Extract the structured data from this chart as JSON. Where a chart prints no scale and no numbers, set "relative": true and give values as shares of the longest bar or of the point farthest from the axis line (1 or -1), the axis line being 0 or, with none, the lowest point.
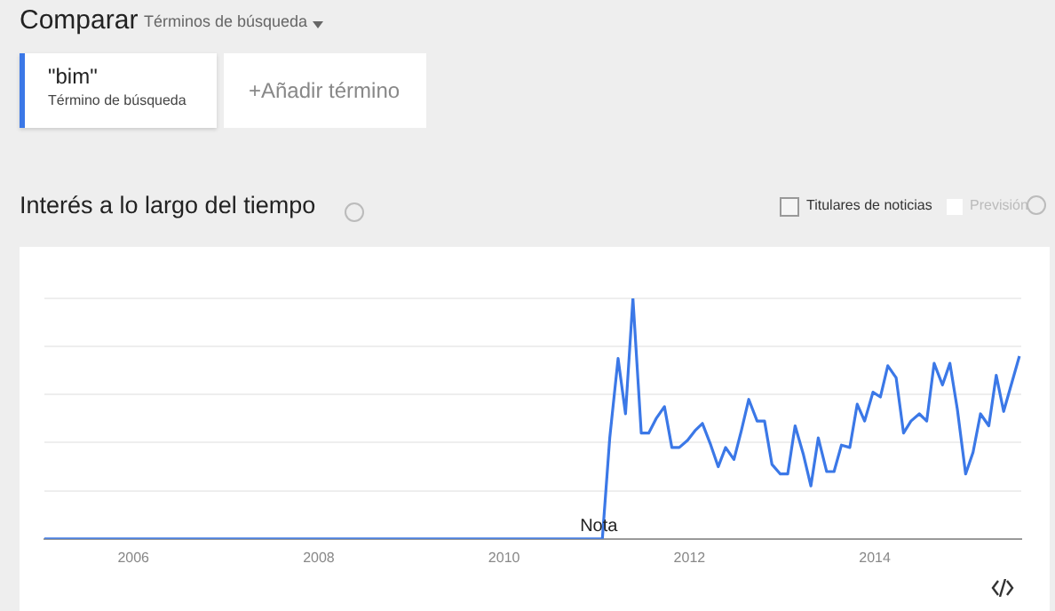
{
  "chart_data": {
    "type": "line",
    "title": "Interés a lo largo del tiempo",
    "relative": true,
    "grid": "y",
    "legend": "top left",
    "marker": "none",
    "line_style": "solid",
    "annotations": [
      "Comparar",
      "Términos de búsqueda",
      "Término de búsqueda",
      "+Añadir término",
      "Titulares de noticias",
      "Previsión",
      {
        "text": "Nota",
        "x": 2011.06,
        "y": 0
      }
    ],
    "xlim": [
      2005.04,
      2015.58
    ],
    "xticks": [
      2006,
      2008,
      2010,
      2012,
      2014
    ],
    "series": [
      {
        "name": "\"bim\"",
        "color": "#3b78e7",
        "x": [
          2005.04,
          2011.06,
          2011.14,
          2011.23,
          2011.31,
          2011.39,
          2011.48,
          2011.56,
          2011.64,
          2011.73,
          2011.81,
          2011.89,
          2011.98,
          2012.06,
          2012.14,
          2012.23,
          2012.31,
          2012.39,
          2012.48,
          2012.56,
          2012.64,
          2012.73,
          2012.81,
          2012.89,
          2012.98,
          2013.06,
          2013.14,
          2013.23,
          2013.31,
          2013.39,
          2013.48,
          2013.56,
          2013.64,
          2013.73,
          2013.81,
          2013.89,
          2013.98,
          2014.06,
          2014.14,
          2014.23,
          2014.31,
          2014.39,
          2014.48,
          2014.56,
          2014.64,
          2014.73,
          2014.81,
          2014.89,
          2014.98,
          2015.06,
          2015.14,
          2015.23,
          2015.31,
          2015.39,
          2015.56
        ],
        "values": [
          0,
          0,
          0.42,
          0.75,
          0.52,
          1.0,
          0.44,
          0.44,
          0.5,
          0.55,
          0.38,
          0.38,
          0.41,
          0.45,
          0.48,
          0.39,
          0.3,
          0.38,
          0.33,
          0.45,
          0.58,
          0.49,
          0.49,
          0.31,
          0.27,
          0.27,
          0.47,
          0.35,
          0.22,
          0.42,
          0.28,
          0.28,
          0.39,
          0.38,
          0.56,
          0.49,
          0.61,
          0.59,
          0.72,
          0.67,
          0.44,
          0.49,
          0.52,
          0.49,
          0.73,
          0.64,
          0.73,
          0.54,
          0.27,
          0.36,
          0.52,
          0.47,
          0.68,
          0.53,
          0.76
        ]
      }
    ]
  }
}
